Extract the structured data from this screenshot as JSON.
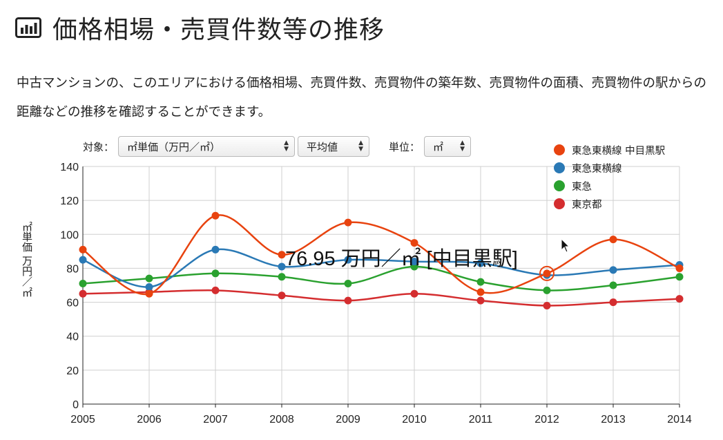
{
  "header": {
    "icon": "bar-chart-icon",
    "title": "価格相場・売買件数等の推移"
  },
  "description": "中古マンションの、このエリアにおける価格相場、売買件数、売買物件の築年数、売買物件の面積、売買物件の駅からの距離などの推移を確認することができます。",
  "controls": {
    "target_label": "対象：",
    "target_value": "㎡単価（万円／㎡）",
    "stat_value": "平均値",
    "unit_label": "単位：",
    "unit_value": "㎡"
  },
  "colors": {
    "nakameguro": "#e8430f",
    "toyoko": "#2a79b5",
    "tokyu": "#2aa12f",
    "tokyo": "#d42d2f"
  },
  "tooltip": {
    "text": "76.95 万円／㎡ [中目黒駅]",
    "series_index": 0,
    "x": 2012
  },
  "chart_data": {
    "type": "line",
    "categories": [
      "2005",
      "2006",
      "2007",
      "2008",
      "2009",
      "2010",
      "2011",
      "2012",
      "2013",
      "2014"
    ],
    "ylabel": "㎡単価 万円／㎡",
    "ylim": [
      0,
      140
    ],
    "yticks": [
      0,
      20,
      40,
      60,
      80,
      100,
      120,
      140
    ],
    "grid": true,
    "legend_position": "top-right",
    "series": [
      {
        "name": "東急東横線 中目黒駅",
        "color": "#e8430f",
        "values": [
          91,
          65,
          111,
          88,
          107,
          95,
          66,
          76.95,
          97,
          80
        ]
      },
      {
        "name": "東急東横線",
        "color": "#2a79b5",
        "values": [
          85,
          69,
          91,
          81,
          85,
          84,
          83,
          76,
          79,
          82
        ]
      },
      {
        "name": "東急",
        "color": "#2aa12f",
        "values": [
          71,
          74,
          77,
          75,
          71,
          81,
          72,
          67,
          70,
          75
        ]
      },
      {
        "name": "東京都",
        "color": "#d42d2f",
        "values": [
          65,
          66,
          67,
          64,
          61,
          65,
          61,
          58,
          60,
          62
        ]
      }
    ]
  }
}
